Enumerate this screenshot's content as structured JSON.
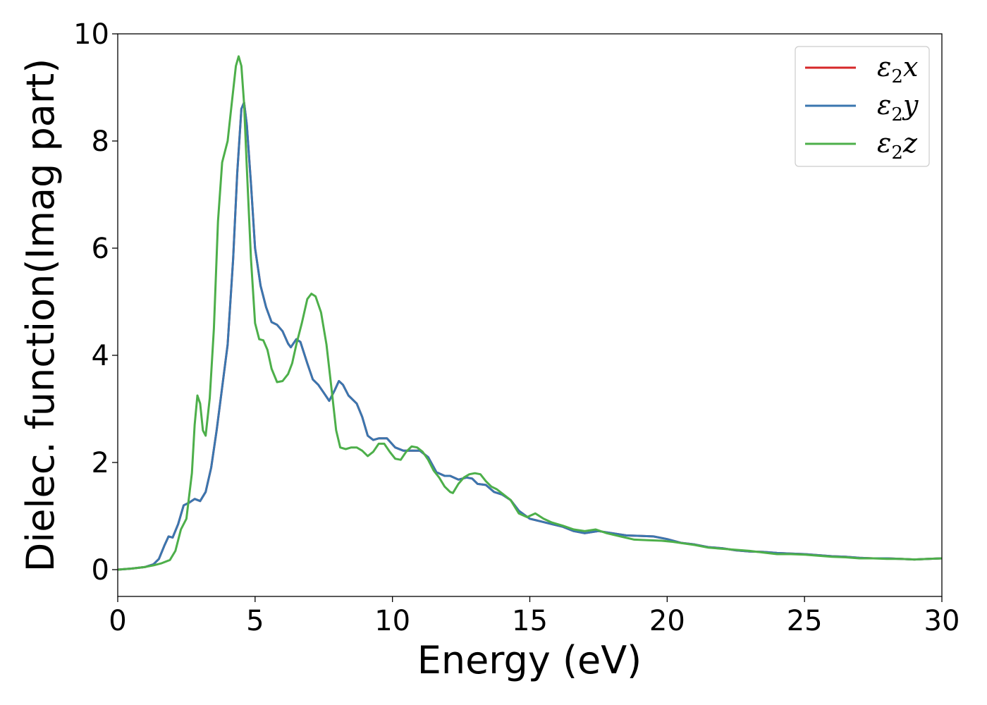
{
  "chart_data": {
    "type": "line",
    "title": "",
    "xlabel": "Energy (eV)",
    "ylabel": "Dielec. function(Imag part)",
    "xlim": [
      0,
      30
    ],
    "ylim": [
      -0.5,
      10
    ],
    "xticks": [
      0,
      5,
      10,
      15,
      20,
      25,
      30
    ],
    "yticks": [
      0,
      2,
      4,
      6,
      8,
      10
    ],
    "grid": false,
    "legend_position": "top-right",
    "series": [
      {
        "name": "ε2x",
        "legend_base": "ε",
        "legend_sub": "2",
        "legend_suffix": "x",
        "color": "#d62728",
        "points": [
          [
            0,
            0
          ],
          [
            0.5,
            0.02
          ],
          [
            1,
            0.05
          ],
          [
            1.3,
            0.1
          ],
          [
            1.5,
            0.2
          ],
          [
            1.7,
            0.45
          ],
          [
            1.85,
            0.62
          ],
          [
            2.0,
            0.6
          ],
          [
            2.2,
            0.85
          ],
          [
            2.4,
            1.2
          ],
          [
            2.6,
            1.25
          ],
          [
            2.8,
            1.32
          ],
          [
            3.0,
            1.28
          ],
          [
            3.2,
            1.45
          ],
          [
            3.4,
            1.9
          ],
          [
            3.6,
            2.6
          ],
          [
            3.8,
            3.4
          ],
          [
            4.0,
            4.2
          ],
          [
            4.2,
            5.8
          ],
          [
            4.35,
            7.4
          ],
          [
            4.5,
            8.6
          ],
          [
            4.6,
            8.72
          ],
          [
            4.7,
            8.3
          ],
          [
            4.85,
            7.2
          ],
          [
            5.0,
            6.0
          ],
          [
            5.2,
            5.3
          ],
          [
            5.4,
            4.9
          ],
          [
            5.6,
            4.62
          ],
          [
            5.8,
            4.57
          ],
          [
            6.0,
            4.45
          ],
          [
            6.2,
            4.22
          ],
          [
            6.3,
            4.15
          ],
          [
            6.5,
            4.3
          ],
          [
            6.65,
            4.25
          ],
          [
            6.9,
            3.85
          ],
          [
            7.1,
            3.55
          ],
          [
            7.3,
            3.45
          ],
          [
            7.5,
            3.3
          ],
          [
            7.7,
            3.15
          ],
          [
            7.9,
            3.35
          ],
          [
            8.05,
            3.52
          ],
          [
            8.2,
            3.45
          ],
          [
            8.4,
            3.25
          ],
          [
            8.7,
            3.1
          ],
          [
            8.9,
            2.85
          ],
          [
            9.1,
            2.5
          ],
          [
            9.3,
            2.42
          ],
          [
            9.5,
            2.45
          ],
          [
            9.8,
            2.45
          ],
          [
            10.1,
            2.28
          ],
          [
            10.4,
            2.22
          ],
          [
            10.7,
            2.22
          ],
          [
            11.0,
            2.22
          ],
          [
            11.3,
            2.1
          ],
          [
            11.6,
            1.82
          ],
          [
            11.9,
            1.75
          ],
          [
            12.1,
            1.75
          ],
          [
            12.4,
            1.68
          ],
          [
            12.7,
            1.72
          ],
          [
            12.9,
            1.7
          ],
          [
            13.1,
            1.6
          ],
          [
            13.4,
            1.58
          ],
          [
            13.7,
            1.45
          ],
          [
            14.0,
            1.4
          ],
          [
            14.3,
            1.3
          ],
          [
            14.6,
            1.1
          ],
          [
            15.0,
            0.95
          ],
          [
            15.4,
            0.9
          ],
          [
            15.8,
            0.85
          ],
          [
            16.2,
            0.8
          ],
          [
            16.6,
            0.72
          ],
          [
            17.0,
            0.68
          ],
          [
            17.5,
            0.72
          ],
          [
            18.0,
            0.68
          ],
          [
            18.5,
            0.64
          ],
          [
            19.0,
            0.63
          ],
          [
            19.5,
            0.62
          ],
          [
            20.0,
            0.57
          ],
          [
            20.5,
            0.5
          ],
          [
            21.0,
            0.47
          ],
          [
            21.5,
            0.42
          ],
          [
            22.0,
            0.4
          ],
          [
            22.5,
            0.36
          ],
          [
            23.0,
            0.34
          ],
          [
            23.5,
            0.33
          ],
          [
            24.0,
            0.31
          ],
          [
            24.5,
            0.3
          ],
          [
            25.0,
            0.29
          ],
          [
            25.5,
            0.27
          ],
          [
            26.0,
            0.25
          ],
          [
            26.5,
            0.24
          ],
          [
            27.0,
            0.22
          ],
          [
            27.5,
            0.21
          ],
          [
            28.0,
            0.21
          ],
          [
            28.5,
            0.2
          ],
          [
            29.0,
            0.19
          ],
          [
            29.5,
            0.2
          ],
          [
            30.0,
            0.21
          ]
        ]
      },
      {
        "name": "ε2y",
        "legend_base": "ε",
        "legend_sub": "2",
        "legend_suffix": "y",
        "color": "#3a76af",
        "points": [
          [
            0,
            0
          ],
          [
            0.5,
            0.02
          ],
          [
            1,
            0.05
          ],
          [
            1.3,
            0.1
          ],
          [
            1.5,
            0.2
          ],
          [
            1.7,
            0.45
          ],
          [
            1.85,
            0.62
          ],
          [
            2.0,
            0.6
          ],
          [
            2.2,
            0.85
          ],
          [
            2.4,
            1.2
          ],
          [
            2.6,
            1.25
          ],
          [
            2.8,
            1.32
          ],
          [
            3.0,
            1.28
          ],
          [
            3.2,
            1.45
          ],
          [
            3.4,
            1.9
          ],
          [
            3.6,
            2.6
          ],
          [
            3.8,
            3.4
          ],
          [
            4.0,
            4.2
          ],
          [
            4.2,
            5.8
          ],
          [
            4.35,
            7.4
          ],
          [
            4.5,
            8.6
          ],
          [
            4.6,
            8.72
          ],
          [
            4.7,
            8.3
          ],
          [
            4.85,
            7.2
          ],
          [
            5.0,
            6.0
          ],
          [
            5.2,
            5.3
          ],
          [
            5.4,
            4.9
          ],
          [
            5.6,
            4.62
          ],
          [
            5.8,
            4.57
          ],
          [
            6.0,
            4.45
          ],
          [
            6.2,
            4.22
          ],
          [
            6.3,
            4.15
          ],
          [
            6.5,
            4.3
          ],
          [
            6.65,
            4.25
          ],
          [
            6.9,
            3.85
          ],
          [
            7.1,
            3.55
          ],
          [
            7.3,
            3.45
          ],
          [
            7.5,
            3.3
          ],
          [
            7.7,
            3.15
          ],
          [
            7.9,
            3.35
          ],
          [
            8.05,
            3.52
          ],
          [
            8.2,
            3.45
          ],
          [
            8.4,
            3.25
          ],
          [
            8.7,
            3.1
          ],
          [
            8.9,
            2.85
          ],
          [
            9.1,
            2.5
          ],
          [
            9.3,
            2.42
          ],
          [
            9.5,
            2.45
          ],
          [
            9.8,
            2.45
          ],
          [
            10.1,
            2.28
          ],
          [
            10.4,
            2.22
          ],
          [
            10.7,
            2.22
          ],
          [
            11.0,
            2.22
          ],
          [
            11.3,
            2.1
          ],
          [
            11.6,
            1.82
          ],
          [
            11.9,
            1.75
          ],
          [
            12.1,
            1.75
          ],
          [
            12.4,
            1.68
          ],
          [
            12.7,
            1.72
          ],
          [
            12.9,
            1.7
          ],
          [
            13.1,
            1.6
          ],
          [
            13.4,
            1.58
          ],
          [
            13.7,
            1.45
          ],
          [
            14.0,
            1.4
          ],
          [
            14.3,
            1.3
          ],
          [
            14.6,
            1.1
          ],
          [
            15.0,
            0.95
          ],
          [
            15.4,
            0.9
          ],
          [
            15.8,
            0.85
          ],
          [
            16.2,
            0.8
          ],
          [
            16.6,
            0.72
          ],
          [
            17.0,
            0.68
          ],
          [
            17.5,
            0.72
          ],
          [
            18.0,
            0.68
          ],
          [
            18.5,
            0.64
          ],
          [
            19.0,
            0.63
          ],
          [
            19.5,
            0.62
          ],
          [
            20.0,
            0.57
          ],
          [
            20.5,
            0.5
          ],
          [
            21.0,
            0.47
          ],
          [
            21.5,
            0.42
          ],
          [
            22.0,
            0.4
          ],
          [
            22.5,
            0.36
          ],
          [
            23.0,
            0.34
          ],
          [
            23.5,
            0.33
          ],
          [
            24.0,
            0.31
          ],
          [
            24.5,
            0.3
          ],
          [
            25.0,
            0.29
          ],
          [
            25.5,
            0.27
          ],
          [
            26.0,
            0.25
          ],
          [
            26.5,
            0.24
          ],
          [
            27.0,
            0.22
          ],
          [
            27.5,
            0.21
          ],
          [
            28.0,
            0.21
          ],
          [
            28.5,
            0.2
          ],
          [
            29.0,
            0.19
          ],
          [
            29.5,
            0.2
          ],
          [
            30.0,
            0.21
          ]
        ]
      },
      {
        "name": "ε2z",
        "legend_base": "ε",
        "legend_sub": "2",
        "legend_suffix": "z",
        "color": "#4daf4a",
        "points": [
          [
            0,
            0
          ],
          [
            0.5,
            0.02
          ],
          [
            1,
            0.05
          ],
          [
            1.3,
            0.08
          ],
          [
            1.6,
            0.12
          ],
          [
            1.9,
            0.18
          ],
          [
            2.1,
            0.35
          ],
          [
            2.3,
            0.75
          ],
          [
            2.5,
            0.95
          ],
          [
            2.7,
            1.8
          ],
          [
            2.8,
            2.7
          ],
          [
            2.9,
            3.25
          ],
          [
            3.0,
            3.1
          ],
          [
            3.1,
            2.6
          ],
          [
            3.2,
            2.5
          ],
          [
            3.35,
            3.2
          ],
          [
            3.5,
            4.5
          ],
          [
            3.65,
            6.5
          ],
          [
            3.8,
            7.6
          ],
          [
            4.0,
            8.0
          ],
          [
            4.15,
            8.7
          ],
          [
            4.3,
            9.4
          ],
          [
            4.4,
            9.58
          ],
          [
            4.5,
            9.4
          ],
          [
            4.6,
            8.7
          ],
          [
            4.7,
            7.5
          ],
          [
            4.85,
            5.8
          ],
          [
            5.0,
            4.6
          ],
          [
            5.15,
            4.3
          ],
          [
            5.3,
            4.28
          ],
          [
            5.45,
            4.1
          ],
          [
            5.6,
            3.75
          ],
          [
            5.8,
            3.5
          ],
          [
            6.0,
            3.52
          ],
          [
            6.2,
            3.65
          ],
          [
            6.35,
            3.85
          ],
          [
            6.5,
            4.2
          ],
          [
            6.7,
            4.6
          ],
          [
            6.9,
            5.05
          ],
          [
            7.05,
            5.15
          ],
          [
            7.2,
            5.1
          ],
          [
            7.4,
            4.8
          ],
          [
            7.6,
            4.2
          ],
          [
            7.8,
            3.3
          ],
          [
            7.95,
            2.6
          ],
          [
            8.1,
            2.28
          ],
          [
            8.3,
            2.25
          ],
          [
            8.5,
            2.28
          ],
          [
            8.7,
            2.28
          ],
          [
            8.9,
            2.22
          ],
          [
            9.1,
            2.12
          ],
          [
            9.3,
            2.2
          ],
          [
            9.5,
            2.35
          ],
          [
            9.7,
            2.35
          ],
          [
            9.9,
            2.2
          ],
          [
            10.1,
            2.07
          ],
          [
            10.3,
            2.05
          ],
          [
            10.5,
            2.2
          ],
          [
            10.7,
            2.3
          ],
          [
            10.9,
            2.28
          ],
          [
            11.1,
            2.2
          ],
          [
            11.3,
            2.05
          ],
          [
            11.5,
            1.85
          ],
          [
            11.7,
            1.72
          ],
          [
            11.9,
            1.55
          ],
          [
            12.1,
            1.45
          ],
          [
            12.2,
            1.43
          ],
          [
            12.4,
            1.6
          ],
          [
            12.6,
            1.72
          ],
          [
            12.8,
            1.78
          ],
          [
            13.0,
            1.8
          ],
          [
            13.2,
            1.78
          ],
          [
            13.4,
            1.65
          ],
          [
            13.6,
            1.55
          ],
          [
            13.8,
            1.5
          ],
          [
            14.0,
            1.42
          ],
          [
            14.3,
            1.3
          ],
          [
            14.6,
            1.05
          ],
          [
            14.9,
            0.98
          ],
          [
            15.2,
            1.05
          ],
          [
            15.5,
            0.95
          ],
          [
            15.8,
            0.88
          ],
          [
            16.2,
            0.82
          ],
          [
            16.6,
            0.75
          ],
          [
            17.0,
            0.72
          ],
          [
            17.4,
            0.75
          ],
          [
            17.8,
            0.68
          ],
          [
            18.3,
            0.62
          ],
          [
            18.8,
            0.56
          ],
          [
            19.3,
            0.55
          ],
          [
            19.8,
            0.54
          ],
          [
            20.2,
            0.52
          ],
          [
            20.6,
            0.49
          ],
          [
            21.0,
            0.46
          ],
          [
            21.5,
            0.41
          ],
          [
            22.0,
            0.39
          ],
          [
            22.5,
            0.37
          ],
          [
            23.0,
            0.35
          ],
          [
            23.5,
            0.32
          ],
          [
            24.0,
            0.29
          ],
          [
            24.5,
            0.29
          ],
          [
            25.0,
            0.28
          ],
          [
            25.5,
            0.26
          ],
          [
            26.0,
            0.24
          ],
          [
            26.5,
            0.23
          ],
          [
            27.0,
            0.21
          ],
          [
            27.5,
            0.21
          ],
          [
            28.0,
            0.2
          ],
          [
            28.5,
            0.2
          ],
          [
            29.0,
            0.19
          ],
          [
            29.5,
            0.2
          ],
          [
            30.0,
            0.21
          ]
        ]
      }
    ]
  }
}
